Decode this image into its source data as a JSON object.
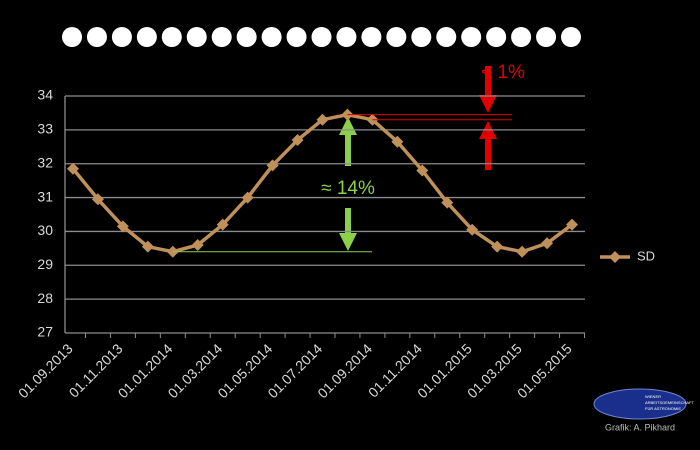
{
  "chart_data": {
    "type": "line",
    "categories": [
      "01.09.2013",
      null,
      "01.11.2013",
      null,
      "01.01.2014",
      null,
      "01.03.2014",
      null,
      "01.05.2014",
      null,
      "01.07.2014",
      null,
      "01.09.2014",
      null,
      "01.11.2014",
      null,
      "01.01.2015",
      null,
      "01.03.2015",
      null,
      "01.05.2015"
    ],
    "series": [
      {
        "name": "SD",
        "color": "#c0905a",
        "values": [
          31.85,
          30.95,
          30.15,
          29.55,
          29.4,
          29.6,
          30.2,
          31.0,
          31.95,
          32.7,
          33.3,
          33.45,
          33.3,
          32.65,
          31.8,
          30.85,
          30.05,
          29.55,
          29.4,
          29.65,
          30.2
        ]
      }
    ],
    "ylim": [
      27,
      34
    ],
    "yticks": [
      27,
      28,
      29,
      30,
      31,
      32,
      33,
      34
    ],
    "grid": true,
    "legend": "right",
    "annotations": [
      "< 1%",
      "≈ 14%"
    ],
    "credit": "Grafik: A. Pikhard",
    "logo_text": [
      "WIENER",
      "ARBEITSGEMEINSCHAFT",
      "FÜR ASTRONOMIE"
    ]
  }
}
